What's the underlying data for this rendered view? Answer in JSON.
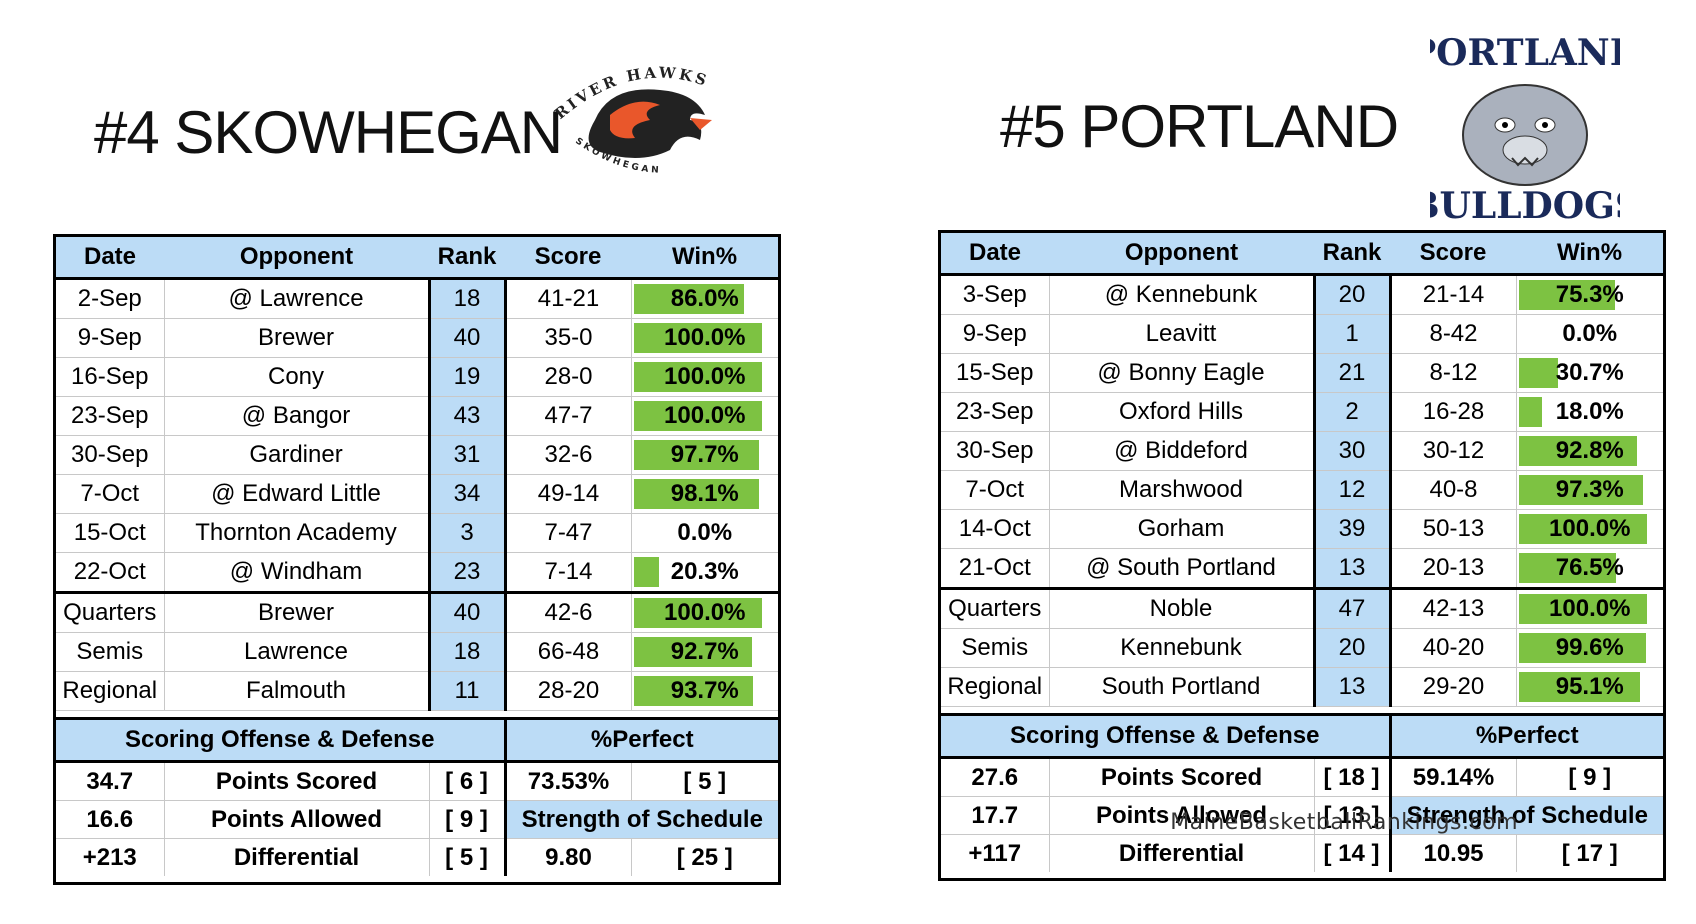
{
  "colors": {
    "header_blue": "#bcdcf6",
    "win_green": "#7dc242",
    "border": "#000000"
  },
  "teams": [
    {
      "title": "#4 SKOWHEGAN",
      "logo": {
        "arc_text": "RIVER HAWKS",
        "sub_text": "SKOWHEGAN",
        "icon": "river-hawk-logo"
      },
      "headers": {
        "date": "Date",
        "opponent": "Opponent",
        "rank": "Rank",
        "score": "Score",
        "win": "Win%"
      },
      "games": [
        {
          "date": "2-Sep",
          "opponent": "@ Lawrence",
          "rank": "18",
          "score": "41-21",
          "win": "86.0%",
          "win_frac": 0.86
        },
        {
          "date": "9-Sep",
          "opponent": "Brewer",
          "rank": "40",
          "score": "35-0",
          "win": "100.0%",
          "win_frac": 1.0
        },
        {
          "date": "16-Sep",
          "opponent": "Cony",
          "rank": "19",
          "score": "28-0",
          "win": "100.0%",
          "win_frac": 1.0
        },
        {
          "date": "23-Sep",
          "opponent": "@ Bangor",
          "rank": "43",
          "score": "47-7",
          "win": "100.0%",
          "win_frac": 1.0
        },
        {
          "date": "30-Sep",
          "opponent": "Gardiner",
          "rank": "31",
          "score": "32-6",
          "win": "97.7%",
          "win_frac": 0.977
        },
        {
          "date": "7-Oct",
          "opponent": "@ Edward Little",
          "rank": "34",
          "score": "49-14",
          "win": "98.1%",
          "win_frac": 0.981
        },
        {
          "date": "15-Oct",
          "opponent": "Thornton Academy",
          "rank": "3",
          "score": "7-47",
          "win": "0.0%",
          "win_frac": 0.0
        },
        {
          "date": "22-Oct",
          "opponent": "@ Windham",
          "rank": "23",
          "score": "7-14",
          "win": "20.3%",
          "win_frac": 0.203
        }
      ],
      "playoffs": [
        {
          "date": "Quarters",
          "opponent": "Brewer",
          "rank": "40",
          "score": "42-6",
          "win": "100.0%",
          "win_frac": 1.0
        },
        {
          "date": "Semis",
          "opponent": "Lawrence",
          "rank": "18",
          "score": "66-48",
          "win": "92.7%",
          "win_frac": 0.927
        },
        {
          "date": "Regional",
          "opponent": "Falmouth",
          "rank": "11",
          "score": "28-20",
          "win": "93.7%",
          "win_frac": 0.937
        }
      ],
      "stats": {
        "sod_header": "Scoring Offense & Defense",
        "perfect_header": "%Perfect",
        "points_scored": {
          "value": "34.7",
          "label": "Points Scored",
          "rank": "[ 6 ]"
        },
        "points_allowed": {
          "value": "16.6",
          "label": "Points Allowed",
          "rank": "[ 9 ]"
        },
        "differential": {
          "value": "+213",
          "label": "Differential",
          "rank": "[ 5 ]"
        },
        "perfect": {
          "value": "73.53%",
          "rank": "[ 5 ]"
        },
        "sos_label": "Strength of Schedule",
        "sos": {
          "value": "9.80",
          "rank": "[ 25 ]"
        }
      }
    },
    {
      "title": "#5 PORTLAND",
      "logo": {
        "arc_text": "PORTLAND",
        "sub_text": "BULLDOGS",
        "icon": "bulldog-logo"
      },
      "headers": {
        "date": "Date",
        "opponent": "Opponent",
        "rank": "Rank",
        "score": "Score",
        "win": "Win%"
      },
      "games": [
        {
          "date": "3-Sep",
          "opponent": "@ Kennebunk",
          "rank": "20",
          "score": "21-14",
          "win": "75.3%",
          "win_frac": 0.753
        },
        {
          "date": "9-Sep",
          "opponent": "Leavitt",
          "rank": "1",
          "score": "8-42",
          "win": "0.0%",
          "win_frac": 0.0
        },
        {
          "date": "15-Sep",
          "opponent": "@ Bonny Eagle",
          "rank": "21",
          "score": "8-12",
          "win": "30.7%",
          "win_frac": 0.307
        },
        {
          "date": "23-Sep",
          "opponent": "Oxford Hills",
          "rank": "2",
          "score": "16-28",
          "win": "18.0%",
          "win_frac": 0.18
        },
        {
          "date": "30-Sep",
          "opponent": "@ Biddeford",
          "rank": "30",
          "score": "30-12",
          "win": "92.8%",
          "win_frac": 0.928
        },
        {
          "date": "7-Oct",
          "opponent": "Marshwood",
          "rank": "12",
          "score": "40-8",
          "win": "97.3%",
          "win_frac": 0.973
        },
        {
          "date": "14-Oct",
          "opponent": "Gorham",
          "rank": "39",
          "score": "50-13",
          "win": "100.0%",
          "win_frac": 1.0
        },
        {
          "date": "21-Oct",
          "opponent": "@ South Portland",
          "rank": "13",
          "score": "20-13",
          "win": "76.5%",
          "win_frac": 0.765
        }
      ],
      "playoffs": [
        {
          "date": "Quarters",
          "opponent": "Noble",
          "rank": "47",
          "score": "42-13",
          "win": "100.0%",
          "win_frac": 1.0
        },
        {
          "date": "Semis",
          "opponent": "Kennebunk",
          "rank": "20",
          "score": "40-20",
          "win": "99.6%",
          "win_frac": 0.996
        },
        {
          "date": "Regional",
          "opponent": "South Portland",
          "rank": "13",
          "score": "29-20",
          "win": "95.1%",
          "win_frac": 0.951
        }
      ],
      "stats": {
        "sod_header": "Scoring Offense & Defense",
        "perfect_header": "%Perfect",
        "points_scored": {
          "value": "27.6",
          "label": "Points Scored",
          "rank": "[ 18 ]"
        },
        "points_allowed": {
          "value": "17.7",
          "label": "Points Allowed",
          "rank": "[ 13 ]"
        },
        "differential": {
          "value": "+117",
          "label": "Differential",
          "rank": "[ 14 ]"
        },
        "perfect": {
          "value": "59.14%",
          "rank": "[ 9 ]"
        },
        "sos_label": "Strength of Schedule",
        "sos": {
          "value": "10.95",
          "rank": "[ 17 ]"
        }
      }
    }
  ],
  "credit": "MaineBasketballRankings.com"
}
